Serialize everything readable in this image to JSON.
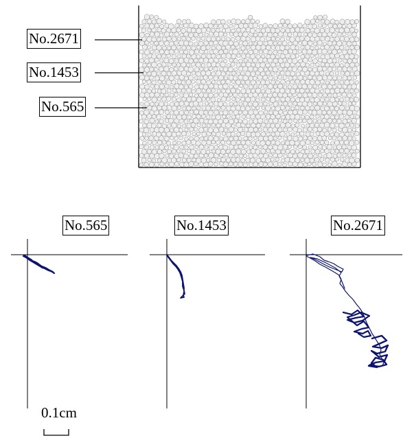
{
  "container_labels": [
    "No.2671",
    "No.1453",
    "No.565"
  ],
  "trajectory_labels": [
    "No.565",
    "No.1453",
    "No.2671"
  ],
  "scale": {
    "text": "0.1cm"
  },
  "colors": {
    "trajectory": "#0d1470",
    "particle_fill": "#eeeeee",
    "particle_stroke": "#9a9a9a"
  }
}
